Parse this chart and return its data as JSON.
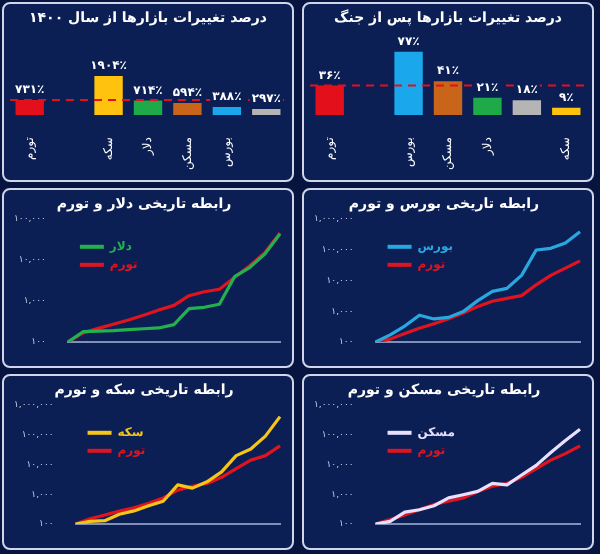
{
  "chart_data": [
    {
      "type": "bar",
      "title": "درصد تغییرات بازارها از سال ۱۴۰۰",
      "categories": [
        "تورم",
        null,
        "سکه",
        "دلار",
        "مسکن",
        "بورس",
        null
      ],
      "values": [
        731,
        null,
        1904,
        714,
        594,
        388,
        297
      ],
      "colors": [
        "#e3101b",
        "#000000",
        "#ffc20e",
        "#1faa4a",
        "#c8651b",
        "#1aa7ec",
        "#b5b5b5"
      ],
      "value_labels": [
        "۷۳۱٪",
        null,
        "۱۹۰۴٪",
        "۷۱۴٪",
        "۵۹۴٪",
        "۳۸۸٪",
        "۲۹۷٪"
      ],
      "ref_lines": [
        {
          "axis": "y",
          "value": 731,
          "color": "#e3101b",
          "line_style": "dashed"
        }
      ]
    },
    {
      "type": "bar",
      "title": "درصد تغییرات بازارها پس از جنگ",
      "categories": [
        "تورم",
        null,
        "بورس",
        "مسکن",
        "دلار",
        null,
        "سکه"
      ],
      "values": [
        36,
        null,
        77,
        41,
        21,
        18,
        9
      ],
      "colors": [
        "#e3101b",
        "#000000",
        "#1aa7ec",
        "#c8651b",
        "#1faa4a",
        "#b5b5b5",
        "#ffc20e"
      ],
      "value_labels": [
        "۳۶٪",
        null,
        "۷۷٪",
        "۴۱٪",
        "۲۱٪",
        "۱۸٪",
        "۹٪"
      ],
      "ref_lines": [
        {
          "axis": "y",
          "value": 36,
          "color": "#e3101b",
          "line_style": "dashed"
        }
      ]
    },
    {
      "type": "line",
      "title": "رابطه تاریخی دلار و تورم",
      "log": true,
      "legend": "top left",
      "tick_labels": "y",
      "marker": "none",
      "categories": [
        null,
        null,
        null,
        null,
        null,
        null,
        null,
        null,
        null,
        null,
        null,
        null,
        null,
        null,
        null
      ],
      "ylim": [
        100,
        100000
      ],
      "yticks": [
        {
          "value": 100,
          "label": "۱۰۰"
        },
        {
          "value": 1000,
          "label": "۱,۰۰۰"
        },
        {
          "value": 10000,
          "label": "۱۰,۰۰۰"
        },
        {
          "value": 100000,
          "label": "۱۰۰,۰۰۰"
        }
      ],
      "series": [
        {
          "name": "دلار",
          "color": "#22b14c",
          "values": [
            100,
            178,
            185,
            190,
            200,
            210,
            220,
            265,
            650,
            700,
            830,
            3900,
            6500,
            13800,
            43000
          ]
        },
        {
          "name": "تورم",
          "color": "#e0141e",
          "values": [
            100,
            166,
            215,
            270,
            345,
            450,
            600,
            780,
            1340,
            1670,
            1930,
            3700,
            7200,
            15000,
            45000
          ]
        }
      ]
    },
    {
      "type": "line",
      "title": "رابطه تاریخی بورس و تورم",
      "log": true,
      "legend": "top left",
      "tick_labels": "y",
      "marker": "none",
      "categories": [
        null,
        null,
        null,
        null,
        null,
        null,
        null,
        null,
        null,
        null,
        null,
        null,
        null,
        null,
        null
      ],
      "ylim": [
        100,
        1000000
      ],
      "yticks": [
        {
          "value": 100,
          "label": "۱۰۰"
        },
        {
          "value": 1000,
          "label": "۱,۰۰۰"
        },
        {
          "value": 10000,
          "label": "۱۰,۰۰۰"
        },
        {
          "value": 100000,
          "label": "۱۰۰,۰۰۰"
        },
        {
          "value": 1000000,
          "label": "۱,۰۰۰,۰۰۰"
        }
      ],
      "series": [
        {
          "name": "بورس",
          "color": "#29a8e0",
          "values": [
            100,
            170,
            330,
            740,
            560,
            630,
            970,
            2200,
            4400,
            5500,
            14600,
            97000,
            110000,
            165000,
            380000
          ]
        },
        {
          "name": "تورم",
          "color": "#e0141e",
          "values": [
            100,
            124,
            190,
            280,
            390,
            565,
            870,
            1420,
            2100,
            2600,
            3200,
            7200,
            14600,
            25000,
            43000
          ]
        }
      ]
    },
    {
      "type": "line",
      "title": "رابطه تاریخی سکه و تورم",
      "log": true,
      "legend": "top left",
      "tick_labels": "y",
      "marker": "none",
      "categories": [
        null,
        null,
        null,
        null,
        null,
        null,
        null,
        null,
        null,
        null,
        null,
        null,
        null,
        null,
        null
      ],
      "ylim": [
        100,
        1000000
      ],
      "yticks": [
        {
          "value": 100,
          "label": "۱۰۰"
        },
        {
          "value": 1000,
          "label": "۱,۰۰۰"
        },
        {
          "value": 10000,
          "label": "۱۰,۰۰۰"
        },
        {
          "value": 100000,
          "label": "۱۰۰,۰۰۰"
        },
        {
          "value": 1000000,
          "label": "۱,۰۰۰,۰۰۰"
        }
      ],
      "series": [
        {
          "name": "سکه",
          "color": "#f5c518",
          "values": [
            100,
            122,
            129,
            213,
            275,
            410,
            580,
            2050,
            1600,
            2600,
            5600,
            19700,
            33000,
            89000,
            400000
          ]
        },
        {
          "name": "تورم",
          "color": "#e0141e",
          "values": [
            100,
            150,
            200,
            270,
            350,
            500,
            750,
            1370,
            1850,
            2300,
            3700,
            7200,
            13900,
            19700,
            42000
          ]
        }
      ]
    },
    {
      "type": "line",
      "title": "رابطه تاریخی مسکن و تورم",
      "log": true,
      "legend": "top left",
      "tick_labels": "y",
      "marker": "none",
      "categories": [
        null,
        null,
        null,
        null,
        null,
        null,
        null,
        null,
        null,
        null,
        null,
        null,
        null,
        null,
        null
      ],
      "ylim": [
        100,
        1000000
      ],
      "yticks": [
        {
          "value": 100,
          "label": "۱۰۰"
        },
        {
          "value": 1000,
          "label": "۱,۰۰۰"
        },
        {
          "value": 10000,
          "label": "۱۰,۰۰۰"
        },
        {
          "value": 100000,
          "label": "۱۰۰,۰۰۰"
        },
        {
          "value": 1000000,
          "label": "۱,۰۰۰,۰۰۰"
        }
      ],
      "series": [
        {
          "name": "مسکن",
          "color": "#e8e0ff",
          "values": [
            100,
            122,
            250,
            300,
            410,
            750,
            960,
            1240,
            2300,
            2050,
            4400,
            9300,
            25000,
            63000,
            150000
          ]
        },
        {
          "name": "تورم",
          "color": "#e0141e",
          "values": [
            100,
            140,
            200,
            300,
            450,
            580,
            750,
            1240,
            1850,
            2300,
            3700,
            7200,
            13900,
            23000,
            42000
          ]
        }
      ]
    }
  ]
}
